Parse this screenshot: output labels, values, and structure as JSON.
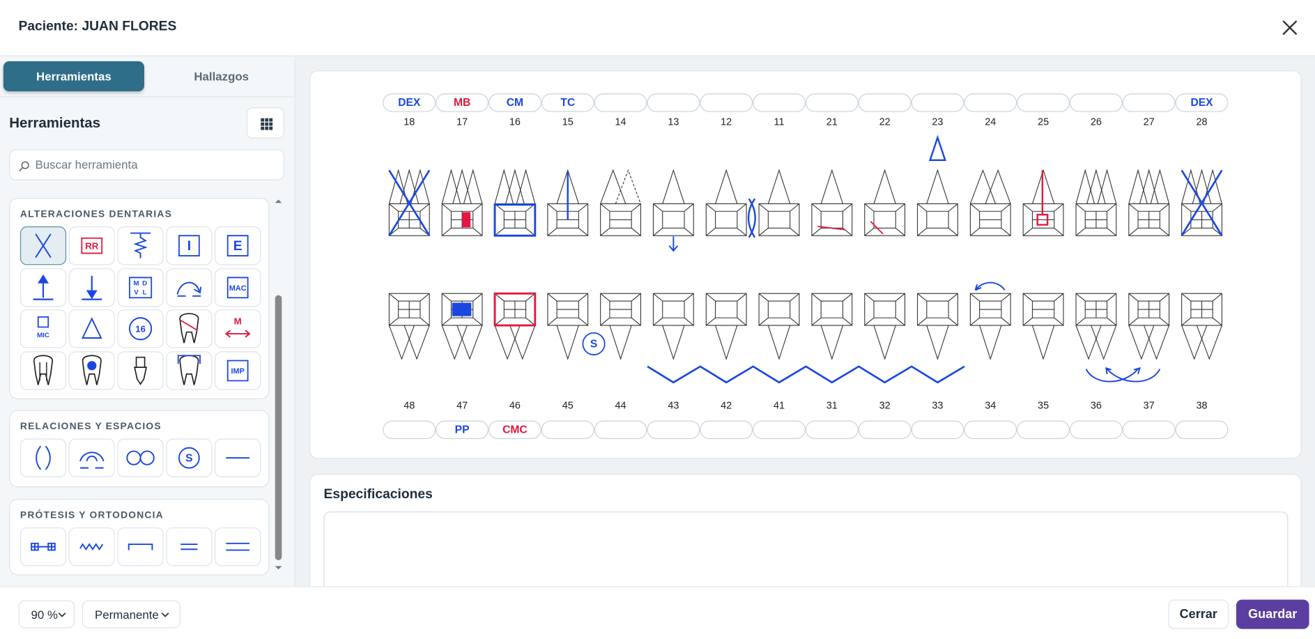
{
  "header": {
    "title": "Paciente: JUAN FLORES"
  },
  "tabs": [
    "Herramientas",
    "Hallazgos"
  ],
  "tools": {
    "title": "Herramientas",
    "search_placeholder": "Buscar herramienta",
    "groups": [
      {
        "title": "ALTERACIONES DENTARIAS",
        "labels": [
          "RR",
          "I",
          "E",
          "MAC",
          "MIC",
          "16",
          "M",
          "IMP"
        ],
        "mdvl": [
          "M",
          "D",
          "V",
          "L"
        ]
      },
      {
        "title": "RELACIONES Y ESPACIOS",
        "labels": [
          "S"
        ]
      },
      {
        "title": "PRÓTESIS Y ORTODONCIA"
      }
    ]
  },
  "odontogram": {
    "upper": [
      {
        "number": "18",
        "code": "DEX",
        "code_color": "#1a47e0"
      },
      {
        "number": "17",
        "code": "MB",
        "code_color": "#e3173f"
      },
      {
        "number": "16",
        "code": "CM",
        "code_color": "#1a47e0"
      },
      {
        "number": "15",
        "code": "TC",
        "code_color": "#1a47e0"
      },
      {
        "number": "14"
      },
      {
        "number": "13"
      },
      {
        "number": "12"
      },
      {
        "number": "11"
      },
      {
        "number": "21"
      },
      {
        "number": "22"
      },
      {
        "number": "23"
      },
      {
        "number": "24"
      },
      {
        "number": "25"
      },
      {
        "number": "26"
      },
      {
        "number": "27"
      },
      {
        "number": "28",
        "code": "DEX",
        "code_color": "#1a47e0"
      }
    ],
    "lower": [
      {
        "number": "48"
      },
      {
        "number": "47",
        "code": "PP",
        "code_color": "#1a47e0"
      },
      {
        "number": "46",
        "code": "CMC",
        "code_color": "#e3173f"
      },
      {
        "number": "45"
      },
      {
        "number": "44"
      },
      {
        "number": "43"
      },
      {
        "number": "42"
      },
      {
        "number": "41"
      },
      {
        "number": "31"
      },
      {
        "number": "32"
      },
      {
        "number": "33"
      },
      {
        "number": "34"
      },
      {
        "number": "35"
      },
      {
        "number": "36"
      },
      {
        "number": "37"
      },
      {
        "number": "38"
      }
    ],
    "annotation": "S"
  },
  "specs": {
    "title": "Especificaciones"
  },
  "footer": {
    "zoom": "90 %",
    "dentition": "Permanente",
    "buttons": [
      "Cerrar",
      "Guardar"
    ]
  }
}
